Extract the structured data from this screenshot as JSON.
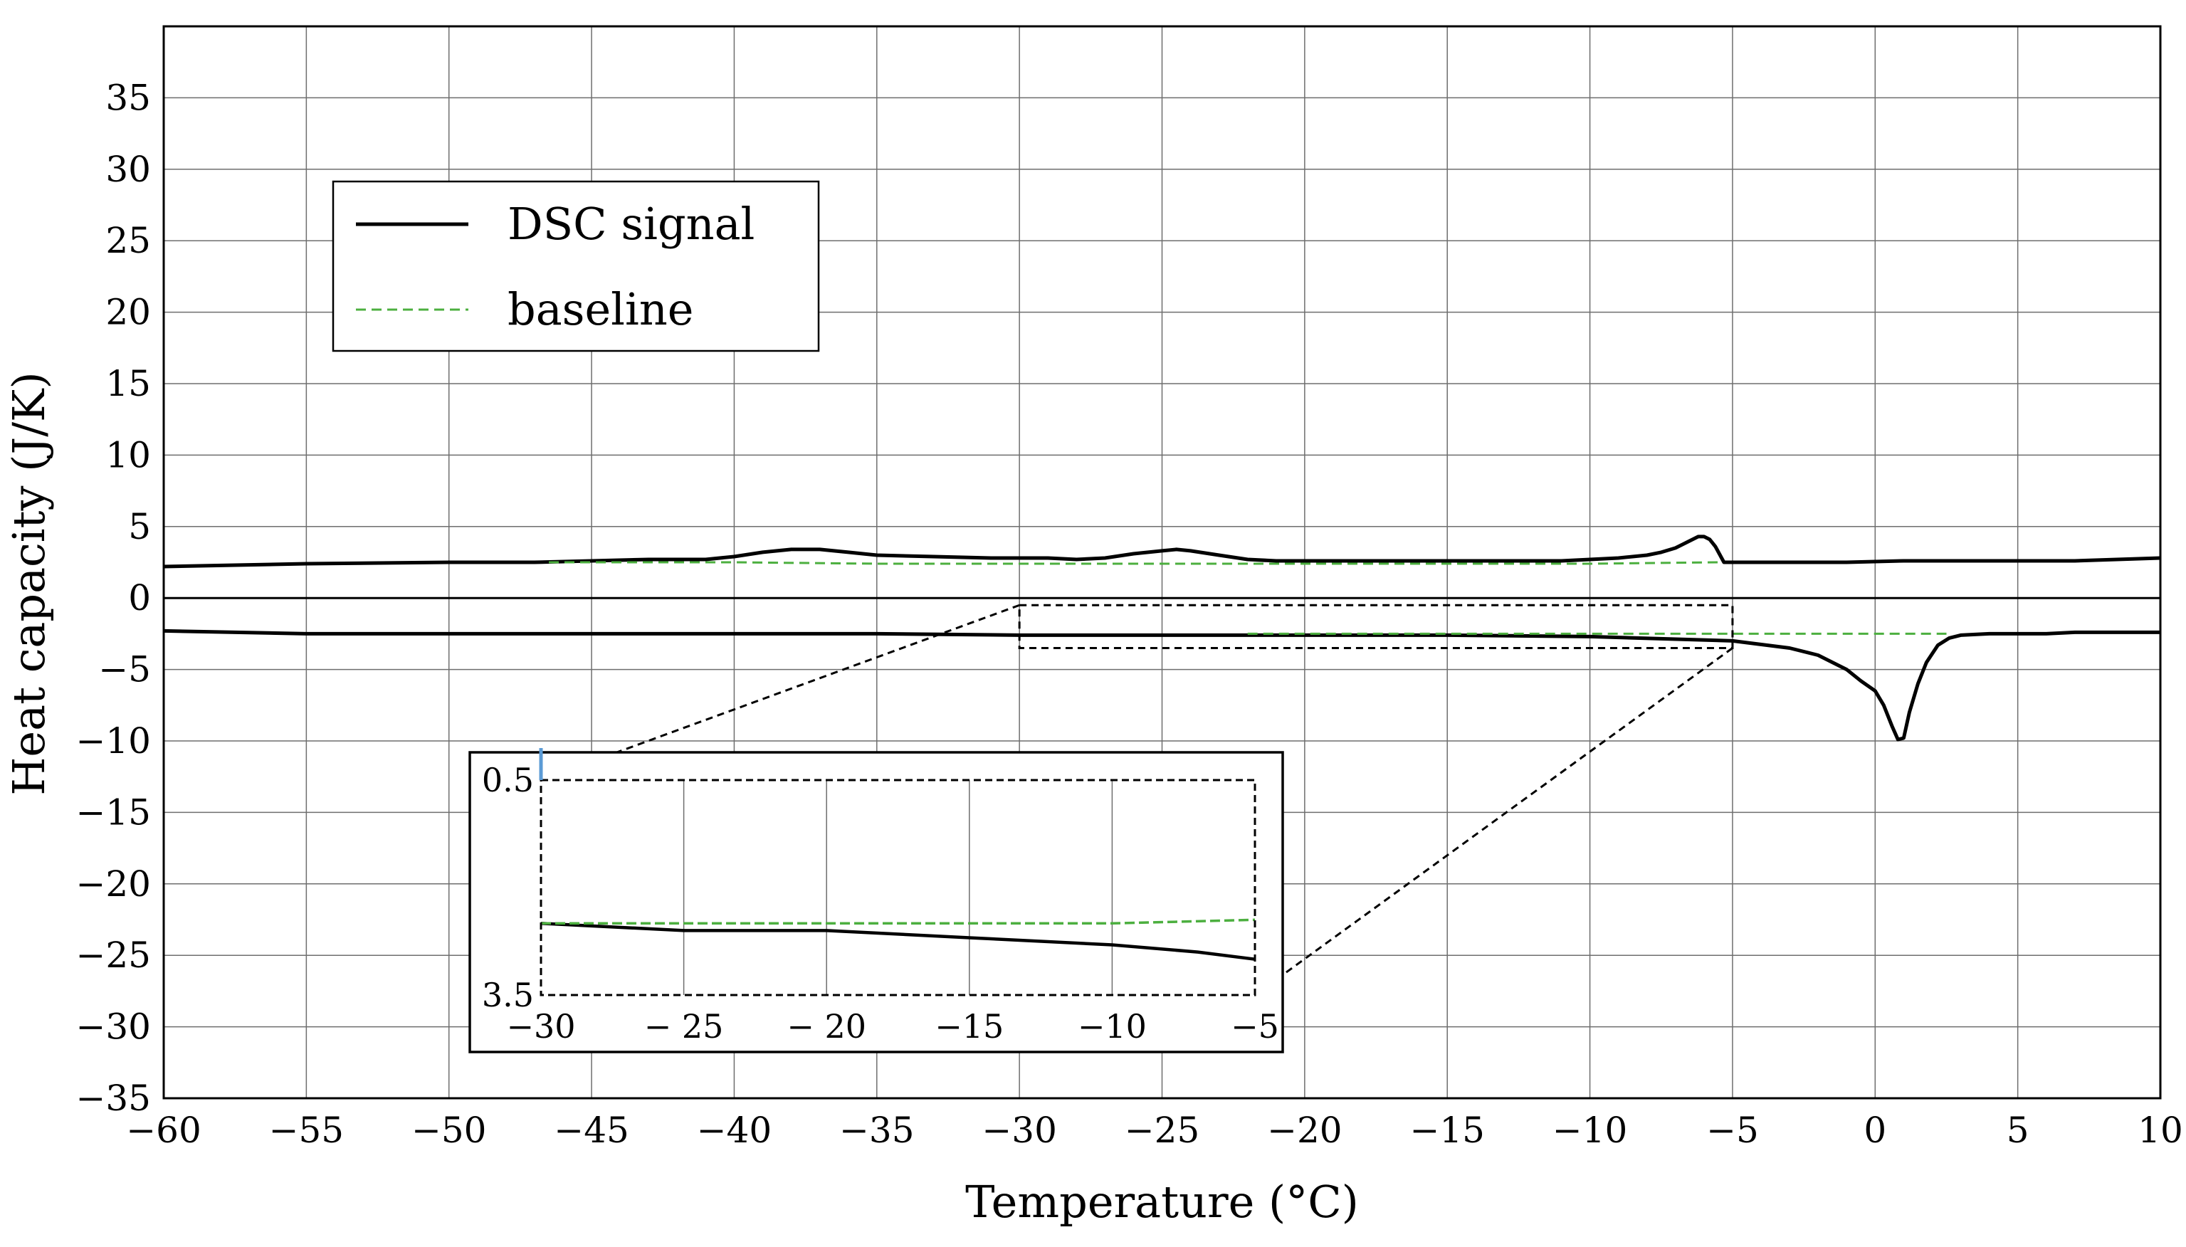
{
  "chart_data": {
    "type": "line",
    "title": "",
    "xlabel": "Temperature (°C)",
    "ylabel": "Heat capacity (J/K)",
    "xlim": [
      -60,
      10
    ],
    "ylim": [
      -35,
      40
    ],
    "xticks": [
      -60,
      -55,
      -50,
      -45,
      -40,
      -35,
      -30,
      -25,
      -20,
      -15,
      -10,
      -5,
      0,
      5,
      10
    ],
    "xtick_labels": [
      "−60",
      "−55",
      "−50",
      "−45",
      "−40",
      "−35",
      "−30",
      "−25",
      "−20",
      "−15",
      "−10",
      "−5",
      "0",
      "5",
      "10"
    ],
    "yticks": [
      -35,
      -30,
      -25,
      -20,
      -15,
      -10,
      -5,
      0,
      5,
      10,
      15,
      20,
      25,
      30,
      35
    ],
    "ytick_labels": [
      "−35",
      "−30",
      "−25",
      "−20",
      "−15",
      "−10",
      "−5",
      "0",
      "5",
      "10",
      "15",
      "20",
      "25",
      "30",
      "35"
    ],
    "grid": true,
    "legend": {
      "position": "top-left",
      "entries": [
        {
          "label": "DSC signal",
          "color": "#000000",
          "style": "solid"
        },
        {
          "label": "baseline",
          "color": "#4caf3f",
          "style": "dashed"
        }
      ]
    },
    "series": [
      {
        "name": "DSC signal",
        "segment": "heating",
        "color": "#000000",
        "x": [
          -60,
          -55,
          -50,
          -47,
          -45,
          -43,
          -41,
          -40,
          -39,
          -38,
          -37,
          -36,
          -35,
          -33,
          -31,
          -29,
          -28,
          -27,
          -26,
          -25,
          -24.5,
          -24,
          -23,
          -22,
          -21,
          -19,
          -17,
          -15,
          -13,
          -11,
          -10,
          -9,
          -8,
          -7.5,
          -7,
          -6.5,
          -6.2,
          -6,
          -5.8,
          -5.6,
          -5.3,
          -5,
          -3,
          -1,
          1,
          4,
          7,
          10
        ],
        "y": [
          2.2,
          2.4,
          2.5,
          2.5,
          2.6,
          2.7,
          2.7,
          2.9,
          3.2,
          3.4,
          3.4,
          3.2,
          3.0,
          2.9,
          2.8,
          2.8,
          2.7,
          2.8,
          3.1,
          3.3,
          3.4,
          3.3,
          3.0,
          2.7,
          2.6,
          2.6,
          2.6,
          2.6,
          2.6,
          2.6,
          2.7,
          2.8,
          3.0,
          3.2,
          3.5,
          4.0,
          4.3,
          4.3,
          4.1,
          3.6,
          2.5,
          2.5,
          2.5,
          2.5,
          2.6,
          2.6,
          2.6,
          2.8
        ]
      },
      {
        "name": "baseline",
        "segment": "heating",
        "color": "#4caf3f",
        "x": [
          -46.5,
          -40,
          -35,
          -30,
          -25,
          -20,
          -15,
          -10,
          -5.5
        ],
        "y": [
          2.5,
          2.5,
          2.4,
          2.4,
          2.4,
          2.4,
          2.4,
          2.4,
          2.5
        ]
      },
      {
        "name": "DSC signal",
        "segment": "cooling",
        "color": "#000000",
        "x": [
          -60,
          -55,
          -50,
          -45,
          -40,
          -35,
          -30,
          -25,
          -20,
          -15,
          -10,
          -5,
          -3,
          -2,
          -1,
          -0.5,
          0,
          0.3,
          0.6,
          0.8,
          1.0,
          1.2,
          1.5,
          1.8,
          2.2,
          2.6,
          3,
          4,
          5,
          6,
          7,
          8,
          10
        ],
        "y": [
          -2.3,
          -2.5,
          -2.5,
          -2.5,
          -2.5,
          -2.5,
          -2.6,
          -2.6,
          -2.6,
          -2.6,
          -2.7,
          -3.0,
          -3.5,
          -4.0,
          -5.0,
          -5.8,
          -6.5,
          -7.5,
          -9.0,
          -9.9,
          -9.8,
          -8.0,
          -6.0,
          -4.5,
          -3.3,
          -2.8,
          -2.6,
          -2.5,
          -2.5,
          -2.5,
          -2.4,
          -2.4,
          -2.4
        ]
      },
      {
        "name": "baseline",
        "segment": "cooling",
        "color": "#4caf3f",
        "x": [
          -22,
          -15,
          -10,
          -5,
          0,
          2.5
        ],
        "y": [
          -2.5,
          -2.5,
          -2.5,
          -2.5,
          -2.5,
          -2.5
        ]
      }
    ],
    "zoom_box": {
      "xlim": [
        -30,
        -5
      ],
      "ylim": [
        -3.5,
        -0.5
      ]
    },
    "inset": {
      "xlim": [
        -30,
        -5
      ],
      "ylim": [
        -3.5,
        -0.5
      ],
      "xticks": [
        -30,
        -25,
        -20,
        -15,
        -10,
        -5
      ],
      "xtick_labels": [
        "−30",
        "− 25",
        "− 20",
        "−15",
        "−10",
        "−5"
      ],
      "ytick_labels": [
        "0.5",
        "3.5"
      ],
      "series": [
        {
          "name": "DSC signal",
          "color": "#000000",
          "x": [
            -30,
            -25,
            -20,
            -15,
            -10,
            -7,
            -5
          ],
          "y": [
            -2.5,
            -2.6,
            -2.6,
            -2.7,
            -2.8,
            -2.9,
            -3.0
          ]
        },
        {
          "name": "baseline",
          "color": "#4caf3f",
          "x": [
            -30,
            -25,
            -20,
            -15,
            -10,
            -5
          ],
          "y": [
            -2.5,
            -2.5,
            -2.5,
            -2.5,
            -2.5,
            -2.45
          ]
        }
      ]
    }
  }
}
